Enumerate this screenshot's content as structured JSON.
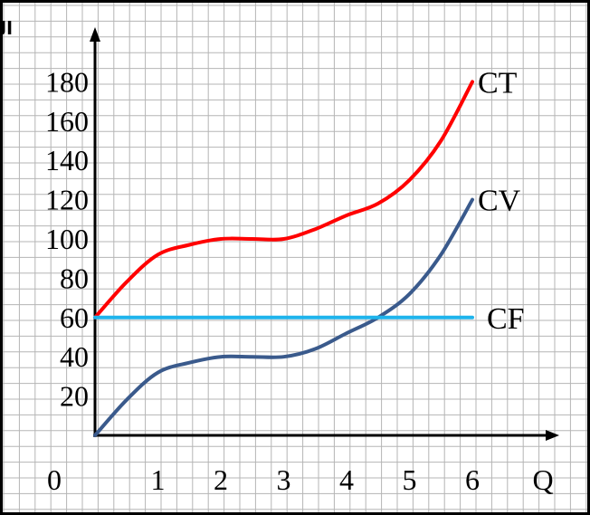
{
  "chart_data": {
    "type": "line",
    "xlabel": "Q",
    "ylabel": "التكلفة",
    "origin_label": "0",
    "x_ticks": [
      1,
      2,
      3,
      4,
      5,
      6
    ],
    "y_ticks": [
      20,
      40,
      60,
      80,
      100,
      120,
      140,
      160,
      180
    ],
    "xlim": [
      0,
      6
    ],
    "ylim": [
      0,
      180
    ],
    "grid": true,
    "series": [
      {
        "name": "CT",
        "color": "#ff0000",
        "x": [
          0,
          0.5,
          1,
          1.5,
          2,
          2.5,
          3,
          3.5,
          4,
          4.5,
          5,
          5.5,
          6
        ],
        "y": [
          60,
          78,
          92,
          97,
          100,
          100,
          100,
          105,
          112,
          118,
          130,
          150,
          180
        ]
      },
      {
        "name": "CV",
        "color": "#3a5a8c",
        "x": [
          0,
          0.5,
          1,
          1.5,
          2,
          2.5,
          3,
          3.5,
          4,
          4.5,
          5,
          5.5,
          6
        ],
        "y": [
          0,
          18,
          32,
          37,
          40,
          40,
          40,
          44,
          52,
          60,
          72,
          92,
          120
        ]
      },
      {
        "name": "CF",
        "color": "#1eb4ec",
        "x": [
          0,
          6
        ],
        "y": [
          60,
          60
        ]
      }
    ]
  }
}
